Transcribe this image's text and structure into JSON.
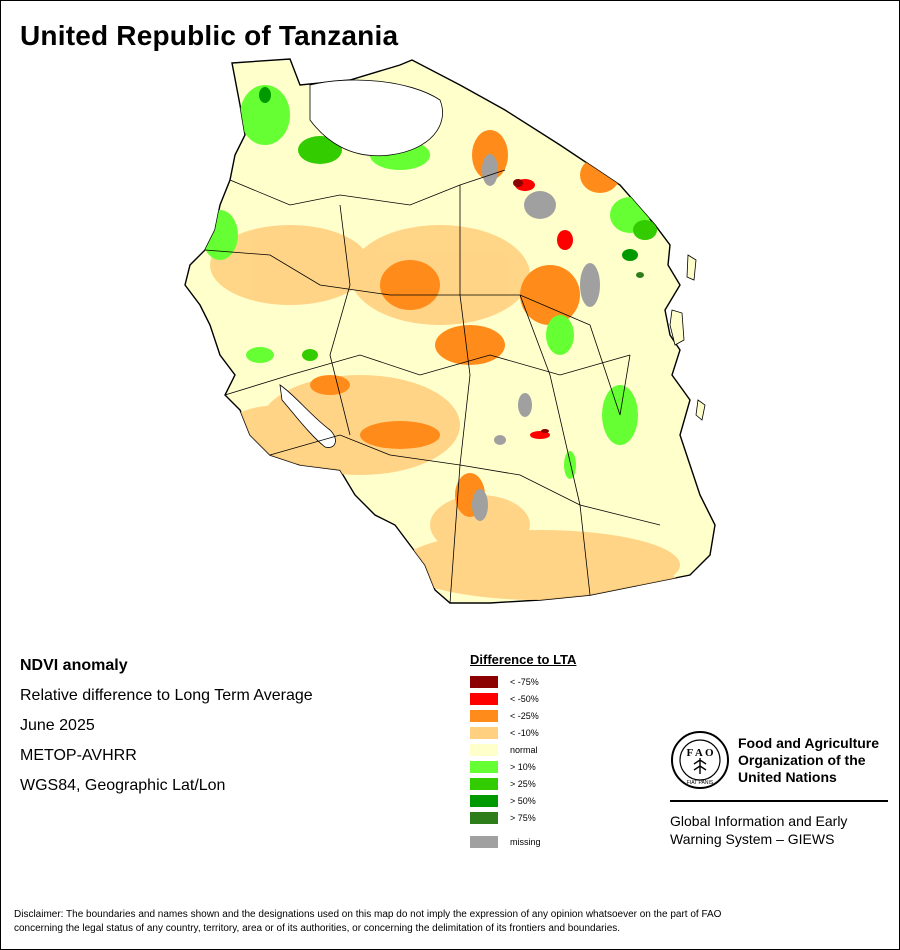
{
  "title": "United Republic of Tanzania",
  "info": {
    "product": "NDVI anomaly",
    "description": "Relative difference to Long Term Average",
    "period": "June 2025",
    "sensor": "METOP-AVHRR",
    "projection": "WGS84, Geographic Lat/Lon"
  },
  "legend": {
    "title": "Difference to LTA",
    "items": [
      {
        "label": "< -75%",
        "color": "#8b0000"
      },
      {
        "label": "< -50%",
        "color": "#ff0000"
      },
      {
        "label": "< -25%",
        "color": "#ff8c1a"
      },
      {
        "label": "< -10%",
        "color": "#ffd080"
      },
      {
        "label": "normal",
        "color": "#ffffcc"
      },
      {
        "label": "> 10%",
        "color": "#66ff33"
      },
      {
        "label": "> 25%",
        "color": "#33cc00"
      },
      {
        "label": "> 50%",
        "color": "#009900"
      },
      {
        "label": "> 75%",
        "color": "#2e7d1b"
      }
    ],
    "missing": {
      "label": "missing",
      "color": "#a0a0a0"
    }
  },
  "fao": {
    "org_line1": "Food and Agriculture",
    "org_line2": "Organization of the",
    "org_line3": "United Nations",
    "giews_line1": "Global Information and Early",
    "giews_line2": "Warning System – GIEWS"
  },
  "disclaimer": {
    "line1": "Disclaimer: The boundaries and names shown and the designations used on this map do not imply the expression of any opinion whatsoever on the part of FAO",
    "line2": "concerning the legal status of any country, territory, area or of its authorities, or concerning the delimitation of its frontiers and boundaries."
  }
}
